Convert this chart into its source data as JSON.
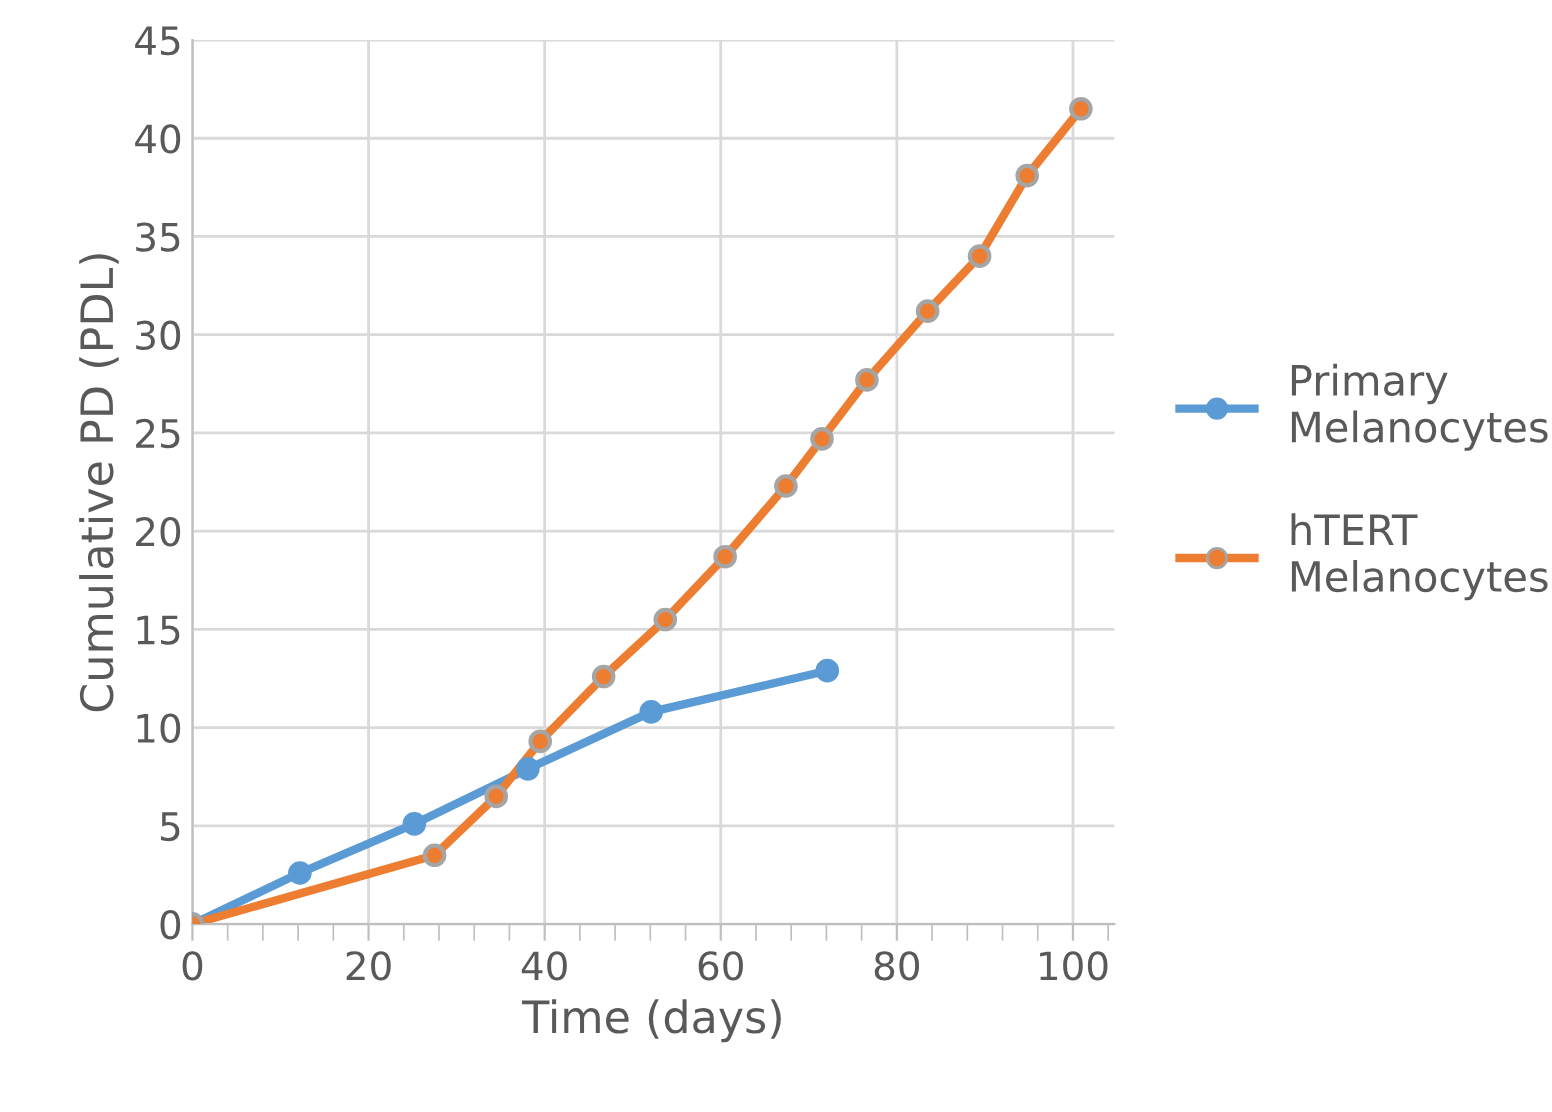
{
  "chart_data": {
    "type": "line",
    "xlabel": "Time (days)",
    "ylabel": "Cumulative PD (PDL)",
    "series": [
      {
        "name": "Primary\nMelanocytes",
        "color": "#5b9bd5",
        "x": [
          0,
          12.2,
          25.2,
          38.1,
          52.1,
          72.1
        ],
        "values": [
          0,
          2.6,
          5.1,
          7.9,
          10.8,
          12.9
        ]
      },
      {
        "name": "hTERT\nMelanocytes",
        "color": "#ed7d31",
        "x": [
          0,
          27.5,
          34.5,
          39.5,
          46.7,
          53.7,
          60.5,
          67.4,
          71.5,
          76.6,
          83.5,
          89.4,
          94.8,
          100.9
        ],
        "values": [
          0,
          3.5,
          6.5,
          9.3,
          12.6,
          15.5,
          18.7,
          22.3,
          24.7,
          27.7,
          31.2,
          34.0,
          38.1,
          41.5
        ]
      }
    ],
    "xlim": [
      0,
      104.7
    ],
    "xticks": [
      0,
      20,
      40,
      60,
      80,
      100
    ],
    "ylim": [
      0,
      45
    ],
    "yticks": [
      0,
      5,
      10,
      15,
      20,
      25,
      30,
      35,
      40,
      45
    ],
    "grid": true,
    "legend": "right",
    "marker": "circle",
    "line_style": "solid"
  }
}
